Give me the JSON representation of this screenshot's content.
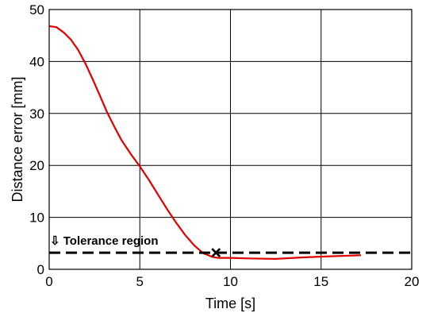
{
  "chart_data": {
    "type": "line",
    "title": "",
    "xlabel": "Time [s]",
    "ylabel": "Distance error [mm]",
    "xlim": [
      0,
      20
    ],
    "ylim": [
      0,
      50
    ],
    "xticks": [
      0,
      5,
      10,
      15,
      20
    ],
    "yticks": [
      0,
      10,
      20,
      30,
      40,
      50
    ],
    "xtick_labels": [
      "0",
      "5",
      "10",
      "15",
      "20"
    ],
    "ytick_labels": [
      "0",
      "10",
      "20",
      "30",
      "40",
      "50"
    ],
    "grid": true,
    "series": [
      {
        "color": "#e00000",
        "style": "solid",
        "x": [
          0,
          0.4,
          0.8,
          1.2,
          1.6,
          2.0,
          2.4,
          2.8,
          3.2,
          3.6,
          4.0,
          4.5,
          5.0,
          5.5,
          6.0,
          6.5,
          7.0,
          7.5,
          8.0,
          8.5,
          9.0,
          9.3,
          9.6,
          10.0,
          11.0,
          12.5,
          14.0,
          15.5,
          17.2
        ],
        "y": [
          46.8,
          46.6,
          45.6,
          44.2,
          42.2,
          39.6,
          36.6,
          33.4,
          30.2,
          27.4,
          24.8,
          22.2,
          19.8,
          17.2,
          14.4,
          11.6,
          9.0,
          6.6,
          4.6,
          3.1,
          2.4,
          2.2,
          2.2,
          2.2,
          2.1,
          2.0,
          2.3,
          2.5,
          2.7
        ]
      },
      {
        "color": "#000000",
        "style": "dashed",
        "x": [
          0,
          20
        ],
        "y": [
          3.2,
          3.2
        ]
      }
    ],
    "marker": {
      "x": 9.2,
      "y": 3.2,
      "symbol": "x",
      "color": "#000000"
    },
    "annotations": [
      {
        "text": "⇩ Tolerance region",
        "x": 0,
        "y": 3.2
      }
    ]
  }
}
